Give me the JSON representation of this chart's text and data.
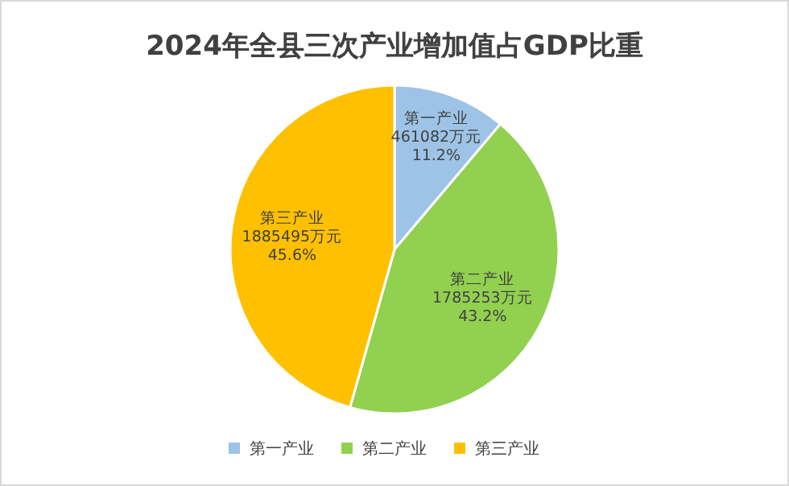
{
  "chart_data": {
    "type": "pie",
    "title": "2024年全县三次产业增加值占GDP比重",
    "categories": [
      "第一产业",
      "第二产业",
      "第三产业"
    ],
    "values": [
      461082,
      1785253,
      1885495
    ],
    "value_labels": [
      "461082万元\n11.2%",
      "1785253万元\n43.2%",
      "1885495万元\n45.6%"
    ],
    "colors": [
      "#9dc3e6",
      "#92d050",
      "#ffc000"
    ],
    "legend": "bottom"
  }
}
